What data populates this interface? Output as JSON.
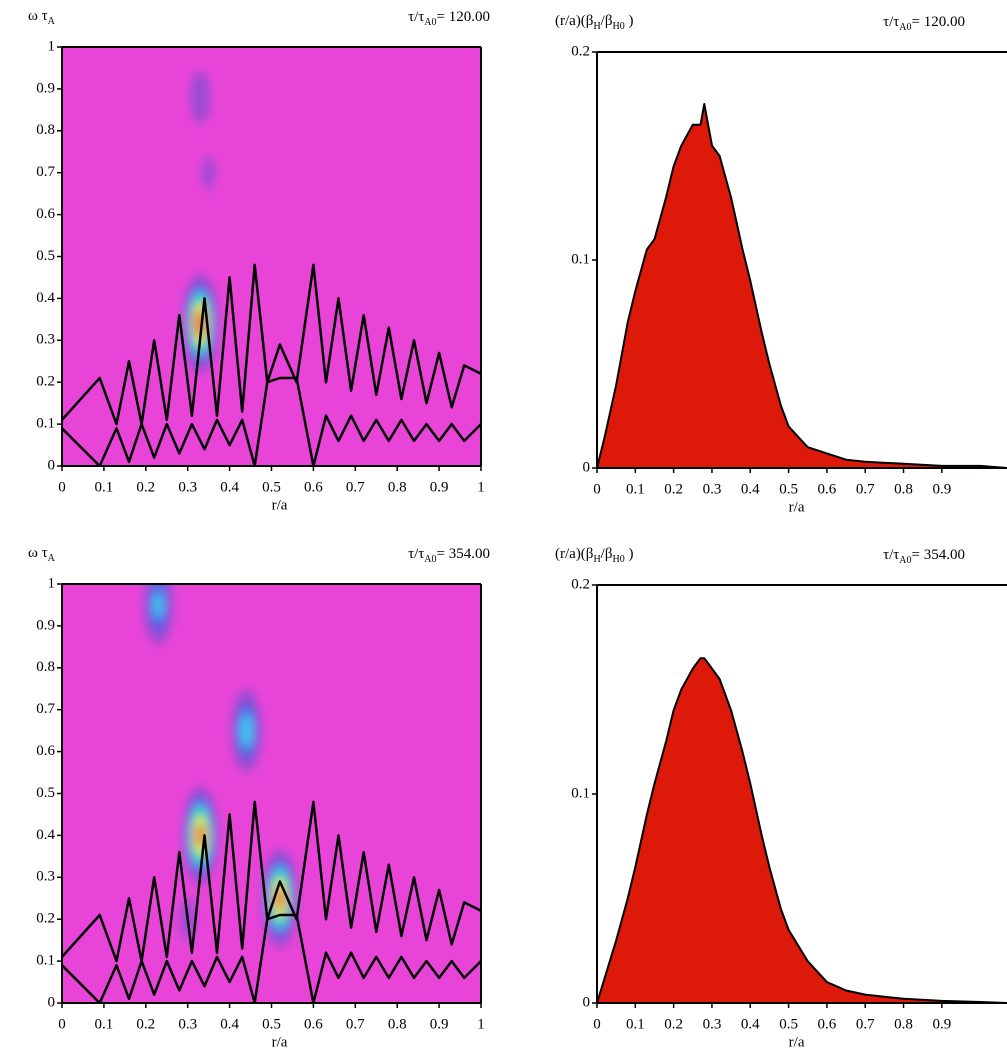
{
  "chart_data": [
    {
      "type": "heatmap",
      "ylabel": [
        "ω τ",
        "A"
      ],
      "time_label": [
        "τ/τ",
        "A0",
        "= 120.00"
      ],
      "xlabel": "r/a",
      "xlim": [
        0,
        1
      ],
      "ylim": [
        0,
        1
      ],
      "xticks": [
        0,
        0.1,
        0.2,
        0.3,
        0.4,
        0.5,
        0.6,
        0.7,
        0.8,
        0.9,
        1
      ],
      "yticks": [
        0,
        0.1,
        0.2,
        0.3,
        0.4,
        0.5,
        0.6,
        0.7,
        0.8,
        0.9,
        1
      ],
      "colormap": [
        "#e845d8",
        "#9a4cd2",
        "#4a5ee6",
        "#3cc8f2",
        "#46e07a",
        "#f2ee3c",
        "#f03a1c"
      ],
      "spots": {
        "x": [
          0.33,
          0.33,
          0.35
        ],
        "y": [
          0.34,
          0.88,
          0.7
        ],
        "intensity": [
          1.0,
          0.25,
          0.18
        ]
      },
      "series": [
        {
          "color": "#000000",
          "x": [
            0,
            0.09,
            0.13,
            0.16,
            0.19,
            0.22,
            0.25,
            0.28,
            0.31,
            0.34,
            0.37,
            0.4,
            0.43,
            0.46,
            0.49,
            0.52,
            0.56,
            0.6,
            0.63,
            0.66,
            0.69,
            0.72,
            0.75,
            0.78,
            0.81,
            0.84,
            0.87,
            0.9,
            0.93,
            0.96,
            1
          ],
          "y": [
            0.11,
            0.21,
            0.1,
            0.25,
            0.1,
            0.3,
            0.11,
            0.36,
            0.12,
            0.4,
            0.12,
            0.45,
            0.13,
            0.48,
            0.2,
            0.29,
            0.2,
            0.48,
            0.2,
            0.4,
            0.18,
            0.36,
            0.17,
            0.33,
            0.16,
            0.3,
            0.15,
            0.27,
            0.14,
            0.24,
            0.22
          ]
        },
        {
          "color": "#000000",
          "x": [
            0,
            0.09,
            0.13,
            0.16,
            0.19,
            0.22,
            0.25,
            0.28,
            0.31,
            0.34,
            0.37,
            0.4,
            0.43,
            0.46,
            0.49,
            0.52,
            0.56,
            0.6,
            0.63,
            0.66,
            0.69,
            0.72,
            0.75,
            0.78,
            0.81,
            0.84,
            0.87,
            0.9,
            0.93,
            0.96,
            1
          ],
          "y": [
            0.09,
            0,
            0.09,
            0.01,
            0.1,
            0.02,
            0.1,
            0.03,
            0.1,
            0.04,
            0.11,
            0.05,
            0.11,
            0,
            0.2,
            0.21,
            0.21,
            0,
            0.12,
            0.06,
            0.12,
            0.06,
            0.11,
            0.06,
            0.11,
            0.06,
            0.1,
            0.06,
            0.1,
            0.06,
            0.1
          ]
        }
      ]
    },
    {
      "type": "area",
      "ylabel": [
        "(r/a)(β",
        "H",
        "/β",
        "H0",
        " )"
      ],
      "time_label": [
        "τ/τ",
        "A0",
        "= 120.00"
      ],
      "xlabel": "r/a",
      "xlim": [
        0,
        1.07
      ],
      "ylim": [
        0,
        0.2
      ],
      "xticks": [
        0,
        0.1,
        0.2,
        0.3,
        0.4,
        0.5,
        0.6,
        0.7,
        0.8,
        0.9
      ],
      "yticks": [
        0,
        0.1,
        0.2
      ],
      "color": "#dd1a0a",
      "x": [
        0,
        0.02,
        0.05,
        0.08,
        0.1,
        0.13,
        0.15,
        0.18,
        0.2,
        0.22,
        0.25,
        0.27,
        0.28,
        0.3,
        0.32,
        0.35,
        0.38,
        0.4,
        0.43,
        0.45,
        0.48,
        0.5,
        0.55,
        0.6,
        0.65,
        0.7,
        0.8,
        0.9,
        1,
        1.07
      ],
      "values": [
        0,
        0.015,
        0.04,
        0.07,
        0.085,
        0.105,
        0.11,
        0.13,
        0.145,
        0.155,
        0.165,
        0.165,
        0.175,
        0.155,
        0.15,
        0.13,
        0.105,
        0.09,
        0.065,
        0.05,
        0.03,
        0.02,
        0.01,
        0.007,
        0.004,
        0.003,
        0.002,
        0.001,
        0.001,
        0
      ]
    },
    {
      "type": "heatmap",
      "ylabel": [
        "ω τ",
        "A"
      ],
      "time_label": [
        "τ/τ",
        "A0",
        "= 354.00"
      ],
      "xlabel": "r/a",
      "xlim": [
        0,
        1
      ],
      "ylim": [
        0,
        1
      ],
      "xticks": [
        0,
        0.1,
        0.2,
        0.3,
        0.4,
        0.5,
        0.6,
        0.7,
        0.8,
        0.9,
        1
      ],
      "yticks": [
        0,
        0.1,
        0.2,
        0.3,
        0.4,
        0.5,
        0.6,
        0.7,
        0.8,
        0.9,
        1
      ],
      "colormap": [
        "#e845d8",
        "#9a4cd2",
        "#4a5ee6",
        "#3cc8f2",
        "#46e07a",
        "#f2ee3c",
        "#f03a1c"
      ],
      "spots": {
        "x": [
          0.33,
          0.52,
          0.44,
          0.23,
          0.3
        ],
        "y": [
          0.4,
          0.25,
          0.65,
          0.95,
          0.2
        ],
        "intensity": [
          0.95,
          0.95,
          0.55,
          0.5,
          0.2
        ]
      },
      "series": [
        {
          "color": "#000000",
          "x": [
            0,
            0.09,
            0.13,
            0.16,
            0.19,
            0.22,
            0.25,
            0.28,
            0.31,
            0.34,
            0.37,
            0.4,
            0.43,
            0.46,
            0.49,
            0.52,
            0.56,
            0.6,
            0.63,
            0.66,
            0.69,
            0.72,
            0.75,
            0.78,
            0.81,
            0.84,
            0.87,
            0.9,
            0.93,
            0.96,
            1
          ],
          "y": [
            0.11,
            0.21,
            0.1,
            0.25,
            0.1,
            0.3,
            0.11,
            0.36,
            0.12,
            0.4,
            0.12,
            0.45,
            0.13,
            0.48,
            0.2,
            0.29,
            0.2,
            0.48,
            0.2,
            0.4,
            0.18,
            0.36,
            0.17,
            0.33,
            0.16,
            0.3,
            0.15,
            0.27,
            0.14,
            0.24,
            0.22
          ]
        },
        {
          "color": "#000000",
          "x": [
            0,
            0.09,
            0.13,
            0.16,
            0.19,
            0.22,
            0.25,
            0.28,
            0.31,
            0.34,
            0.37,
            0.4,
            0.43,
            0.46,
            0.49,
            0.52,
            0.56,
            0.6,
            0.63,
            0.66,
            0.69,
            0.72,
            0.75,
            0.78,
            0.81,
            0.84,
            0.87,
            0.9,
            0.93,
            0.96,
            1
          ],
          "y": [
            0.09,
            0,
            0.09,
            0.01,
            0.1,
            0.02,
            0.1,
            0.03,
            0.1,
            0.04,
            0.11,
            0.05,
            0.11,
            0,
            0.2,
            0.21,
            0.21,
            0,
            0.12,
            0.06,
            0.12,
            0.06,
            0.11,
            0.06,
            0.11,
            0.06,
            0.1,
            0.06,
            0.1,
            0.06,
            0.1
          ]
        }
      ]
    },
    {
      "type": "area",
      "ylabel": [
        "(r/a)(β",
        "H",
        "/β",
        "H0",
        " )"
      ],
      "time_label": [
        "τ/τ",
        "A0",
        "= 354.00"
      ],
      "xlabel": "r/a",
      "xlim": [
        0,
        1.07
      ],
      "ylim": [
        0,
        0.2
      ],
      "xticks": [
        0,
        0.1,
        0.2,
        0.3,
        0.4,
        0.5,
        0.6,
        0.7,
        0.8,
        0.9
      ],
      "yticks": [
        0,
        0.1,
        0.2
      ],
      "color": "#dd1a0a",
      "x": [
        0,
        0.02,
        0.05,
        0.08,
        0.1,
        0.13,
        0.15,
        0.18,
        0.2,
        0.22,
        0.25,
        0.27,
        0.28,
        0.3,
        0.32,
        0.35,
        0.38,
        0.4,
        0.43,
        0.45,
        0.48,
        0.5,
        0.55,
        0.6,
        0.65,
        0.7,
        0.8,
        0.9,
        1,
        1.07
      ],
      "values": [
        0,
        0.012,
        0.03,
        0.05,
        0.065,
        0.09,
        0.105,
        0.125,
        0.14,
        0.15,
        0.16,
        0.165,
        0.165,
        0.16,
        0.155,
        0.14,
        0.12,
        0.105,
        0.08,
        0.065,
        0.045,
        0.035,
        0.02,
        0.01,
        0.006,
        0.004,
        0.002,
        0.001,
        0.0005,
        0
      ]
    }
  ]
}
